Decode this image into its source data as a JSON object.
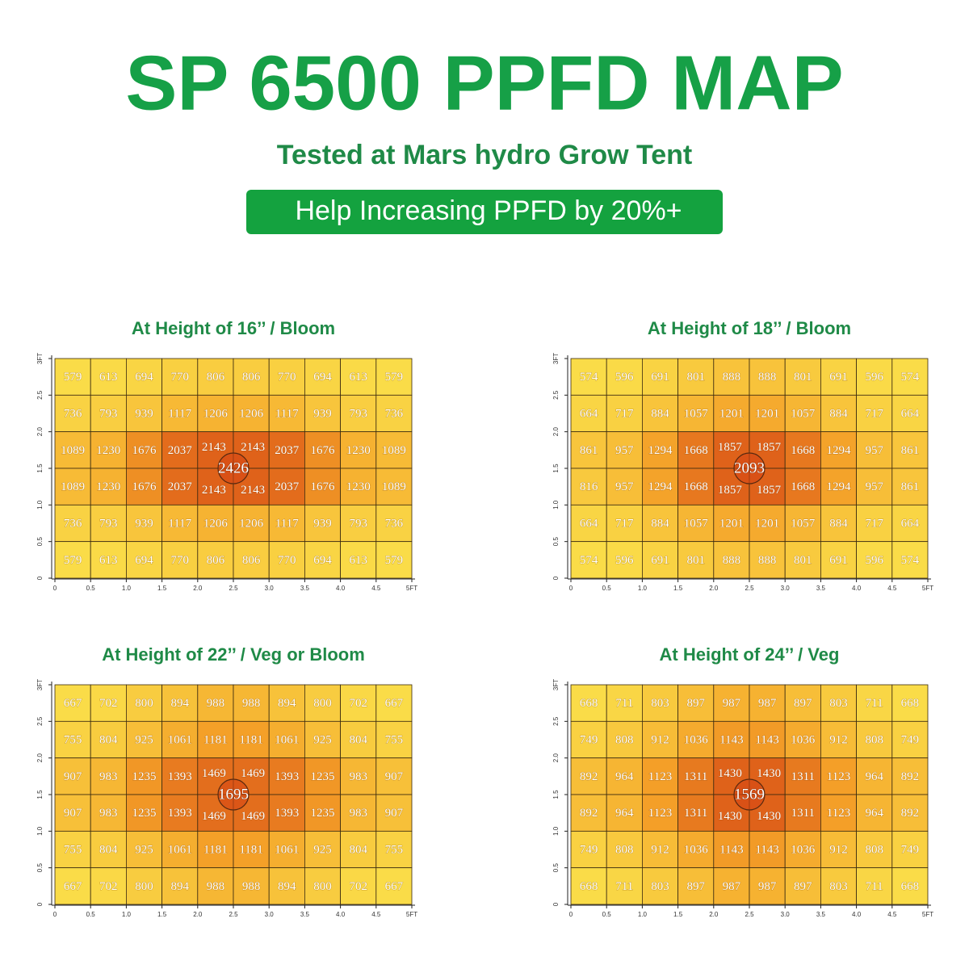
{
  "header": {
    "title": "SP 6500 PPFD MAP",
    "subtitle": "Tested at Mars hydro Grow Tent",
    "badge": "Help Increasing PPFD by 20%+"
  },
  "chart_data": [
    {
      "type": "heatmap",
      "title": "At Height of 16’’ / Bloom",
      "values": [
        [
          579,
          613,
          694,
          770,
          806,
          806,
          770,
          694,
          613,
          579
        ],
        [
          736,
          793,
          939,
          1117,
          1206,
          1206,
          1117,
          939,
          793,
          736
        ],
        [
          1089,
          1230,
          1676,
          2037,
          2143,
          2143,
          2037,
          1676,
          1230,
          1089
        ],
        [
          1089,
          1230,
          1676,
          2037,
          2143,
          2143,
          2037,
          1676,
          1230,
          1089
        ],
        [
          736,
          793,
          939,
          1117,
          1206,
          1206,
          1117,
          939,
          793,
          736
        ],
        [
          579,
          613,
          694,
          770,
          806,
          806,
          770,
          694,
          613,
          579
        ]
      ],
      "center_value": 2426,
      "xlim": [
        0,
        5
      ],
      "ylim": [
        0,
        3
      ],
      "xticks": [
        0,
        0.5,
        {
          "value": 1,
          "label": "1.0"
        },
        1.5,
        {
          "value": 2,
          "label": "2.0"
        },
        2.5,
        {
          "value": 3,
          "label": "3.0"
        },
        3.5,
        {
          "value": 4,
          "label": "4.0"
        },
        4.5,
        {
          "value": 5,
          "label": "5FT"
        }
      ],
      "yticks": [
        0,
        0.5,
        {
          "value": 1,
          "label": "1.0"
        },
        1.5,
        {
          "value": 2,
          "label": "2.0"
        },
        2.5,
        {
          "value": 3,
          "label": "3FT"
        }
      ]
    },
    {
      "type": "heatmap",
      "title": "At Height of 18’’ / Bloom",
      "values": [
        [
          574,
          596,
          691,
          801,
          888,
          888,
          801,
          691,
          596,
          574
        ],
        [
          664,
          717,
          884,
          1057,
          1201,
          1201,
          1057,
          884,
          717,
          664
        ],
        [
          861,
          957,
          1294,
          1668,
          1857,
          1857,
          1668,
          1294,
          957,
          861
        ],
        [
          816,
          957,
          1294,
          1668,
          1857,
          1857,
          1668,
          1294,
          957,
          861
        ],
        [
          664,
          717,
          884,
          1057,
          1201,
          1201,
          1057,
          884,
          717,
          664
        ],
        [
          574,
          596,
          691,
          801,
          888,
          888,
          801,
          691,
          596,
          574
        ]
      ],
      "center_value": 2093,
      "xlim": [
        0,
        5
      ],
      "ylim": [
        0,
        3
      ],
      "xticks": [
        0,
        0.5,
        {
          "value": 1,
          "label": "1.0"
        },
        1.5,
        {
          "value": 2,
          "label": "2.0"
        },
        2.5,
        {
          "value": 3,
          "label": "3.0"
        },
        3.5,
        {
          "value": 4,
          "label": "4.0"
        },
        4.5,
        {
          "value": 5,
          "label": "5FT"
        }
      ],
      "yticks": [
        0,
        0.5,
        {
          "value": 1,
          "label": "1.0"
        },
        1.5,
        {
          "value": 2,
          "label": "2.0"
        },
        2.5,
        {
          "value": 3,
          "label": "3FT"
        }
      ]
    },
    {
      "type": "heatmap",
      "title": "At Height of 22’’ / Veg or Bloom",
      "values": [
        [
          667,
          702,
          800,
          894,
          988,
          988,
          894,
          800,
          702,
          667
        ],
        [
          755,
          804,
          925,
          1061,
          1181,
          1181,
          1061,
          925,
          804,
          755
        ],
        [
          907,
          983,
          1235,
          1393,
          1469,
          1469,
          1393,
          1235,
          983,
          907
        ],
        [
          907,
          983,
          1235,
          1393,
          1469,
          1469,
          1393,
          1235,
          983,
          907
        ],
        [
          755,
          804,
          925,
          1061,
          1181,
          1181,
          1061,
          925,
          804,
          755
        ],
        [
          667,
          702,
          800,
          894,
          988,
          988,
          894,
          800,
          702,
          667
        ]
      ],
      "center_value": 1695,
      "xlim": [
        0,
        5
      ],
      "ylim": [
        0,
        3
      ],
      "xticks": [
        0,
        0.5,
        {
          "value": 1,
          "label": "1.0"
        },
        1.5,
        {
          "value": 2,
          "label": "2.0"
        },
        2.5,
        {
          "value": 3,
          "label": "3.0"
        },
        3.5,
        {
          "value": 4,
          "label": "4.0"
        },
        4.5,
        {
          "value": 5,
          "label": "5FT"
        }
      ],
      "yticks": [
        0,
        0.5,
        {
          "value": 1,
          "label": "1.0"
        },
        1.5,
        {
          "value": 2,
          "label": "2.0"
        },
        2.5,
        {
          "value": 3,
          "label": "3FT"
        }
      ]
    },
    {
      "type": "heatmap",
      "title": "At Height of 24’’ / Veg",
      "values": [
        [
          668,
          711,
          803,
          897,
          987,
          987,
          897,
          803,
          711,
          668
        ],
        [
          749,
          808,
          912,
          1036,
          1143,
          1143,
          1036,
          912,
          808,
          749
        ],
        [
          892,
          964,
          1123,
          1311,
          1430,
          1430,
          1311,
          1123,
          964,
          892
        ],
        [
          892,
          964,
          1123,
          1311,
          1430,
          1430,
          1311,
          1123,
          964,
          892
        ],
        [
          749,
          808,
          912,
          1036,
          1143,
          1143,
          1036,
          912,
          808,
          749
        ],
        [
          668,
          711,
          803,
          897,
          987,
          987,
          897,
          803,
          711,
          668
        ]
      ],
      "center_value": 1569,
      "xlim": [
        0,
        5
      ],
      "ylim": [
        0,
        3
      ],
      "xticks": [
        0,
        0.5,
        {
          "value": 1,
          "label": "1.0"
        },
        1.5,
        {
          "value": 2,
          "label": "2.0"
        },
        2.5,
        {
          "value": 3,
          "label": "3.0"
        },
        3.5,
        {
          "value": 4,
          "label": "4.0"
        },
        4.5,
        {
          "value": 5,
          "label": "5FT"
        }
      ],
      "yticks": [
        0,
        0.5,
        {
          "value": 1,
          "label": "1.0"
        },
        1.5,
        {
          "value": 2,
          "label": "2.0"
        },
        2.5,
        {
          "value": 3,
          "label": "3FT"
        }
      ]
    }
  ]
}
